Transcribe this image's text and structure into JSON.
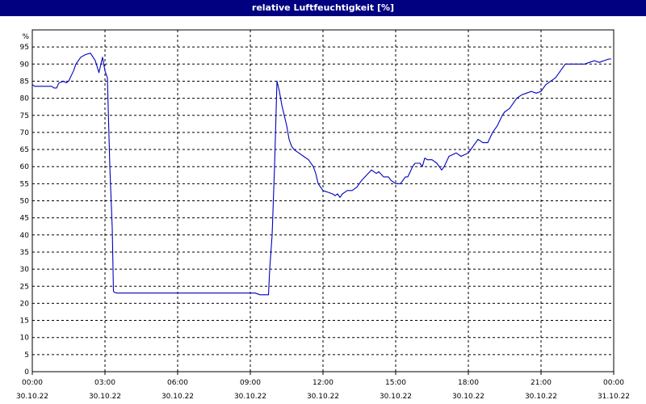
{
  "chart_data": {
    "type": "line",
    "title": "relative Luftfeuchtigkeit [%]",
    "ylabel": "%",
    "ylim": [
      0,
      100
    ],
    "yticks": [
      0,
      5,
      10,
      15,
      20,
      25,
      30,
      35,
      40,
      45,
      50,
      55,
      60,
      65,
      70,
      75,
      80,
      85,
      90,
      95
    ],
    "xlim": [
      0,
      24
    ],
    "xticks": [
      {
        "time": "00:00",
        "date": "30.10.22"
      },
      {
        "time": "03:00",
        "date": "30.10.22"
      },
      {
        "time": "06:00",
        "date": "30.10.22"
      },
      {
        "time": "09:00",
        "date": "30.10.22"
      },
      {
        "time": "12:00",
        "date": "30.10.22"
      },
      {
        "time": "15:00",
        "date": "30.10.22"
      },
      {
        "time": "18:00",
        "date": "30.10.22"
      },
      {
        "time": "21:00",
        "date": "30.10.22"
      },
      {
        "time": "00:00",
        "date": "31.10.22"
      }
    ],
    "grid": true,
    "line_color": "#0000c0",
    "series": [
      {
        "x": [
          0,
          0.1,
          0.5,
          0.8,
          0.9,
          1.0,
          1.1,
          1.3,
          1.4,
          1.5,
          1.7,
          1.8,
          2.0,
          2.2,
          2.4,
          2.6,
          2.75,
          2.9,
          3.0,
          3.1,
          3.2,
          3.3,
          3.35,
          3.4,
          3.45,
          3.5,
          4.0,
          5.0,
          6.0,
          7.0,
          8.0,
          9.0,
          9.2,
          9.4,
          9.5,
          9.6,
          9.65,
          9.7,
          9.75,
          9.8,
          9.9,
          10.0,
          10.1,
          10.2,
          10.3,
          10.4,
          10.5,
          10.6,
          10.7,
          10.8,
          10.9,
          11.0,
          11.2,
          11.4,
          11.6,
          11.7,
          11.8,
          12.0,
          12.2,
          12.4,
          12.5,
          12.6,
          12.7,
          12.8,
          12.9,
          13.0,
          13.2,
          13.4,
          13.5,
          13.6,
          13.8,
          14.0,
          14.2,
          14.3,
          14.5,
          14.7,
          14.8,
          15.0,
          15.2,
          15.4,
          15.5,
          15.7,
          15.8,
          16.0,
          16.1,
          16.2,
          16.3,
          16.5,
          16.7,
          16.9,
          17.0,
          17.2,
          17.5,
          17.7,
          18.0,
          18.2,
          18.4,
          18.6,
          18.8,
          19.0,
          19.2,
          19.4,
          19.5,
          19.7,
          19.9,
          20.0,
          20.2,
          20.4,
          20.6,
          20.8,
          21.0,
          21.2,
          21.4,
          21.6,
          21.8,
          22.0,
          22.2,
          22.4,
          22.6,
          22.8,
          23.0,
          23.2,
          23.4,
          23.6,
          23.8,
          23.9
        ],
        "y": [
          84,
          83.5,
          83.5,
          83.5,
          83,
          83,
          84.5,
          85,
          84.5,
          85,
          88,
          90,
          92,
          92.8,
          93.2,
          91,
          87.5,
          92,
          88,
          86,
          60,
          42,
          23.5,
          23.2,
          23.1,
          23,
          23,
          23,
          23,
          23,
          23,
          23,
          23,
          22.5,
          22.5,
          22.5,
          22.5,
          22.5,
          22.5,
          30,
          40,
          60,
          85,
          82,
          78,
          75,
          72,
          68,
          66,
          65,
          64.5,
          64,
          63,
          62,
          60,
          58,
          55,
          53,
          52.5,
          52,
          51.5,
          52,
          51,
          52,
          52.5,
          53,
          53,
          54,
          55,
          56,
          57.5,
          59,
          58,
          58.5,
          57,
          57,
          56,
          55,
          55,
          57,
          57,
          60,
          61,
          61,
          60,
          62.5,
          62,
          62,
          61,
          59,
          60,
          63,
          64,
          63,
          64,
          66,
          68,
          67,
          67,
          70,
          72,
          75,
          76,
          77,
          79,
          80,
          81,
          81.5,
          82,
          81.5,
          82,
          84,
          85,
          86,
          88,
          90,
          90,
          90,
          90,
          90,
          90.5,
          91,
          90.5,
          91,
          91.5,
          91.5
        ]
      }
    ]
  }
}
